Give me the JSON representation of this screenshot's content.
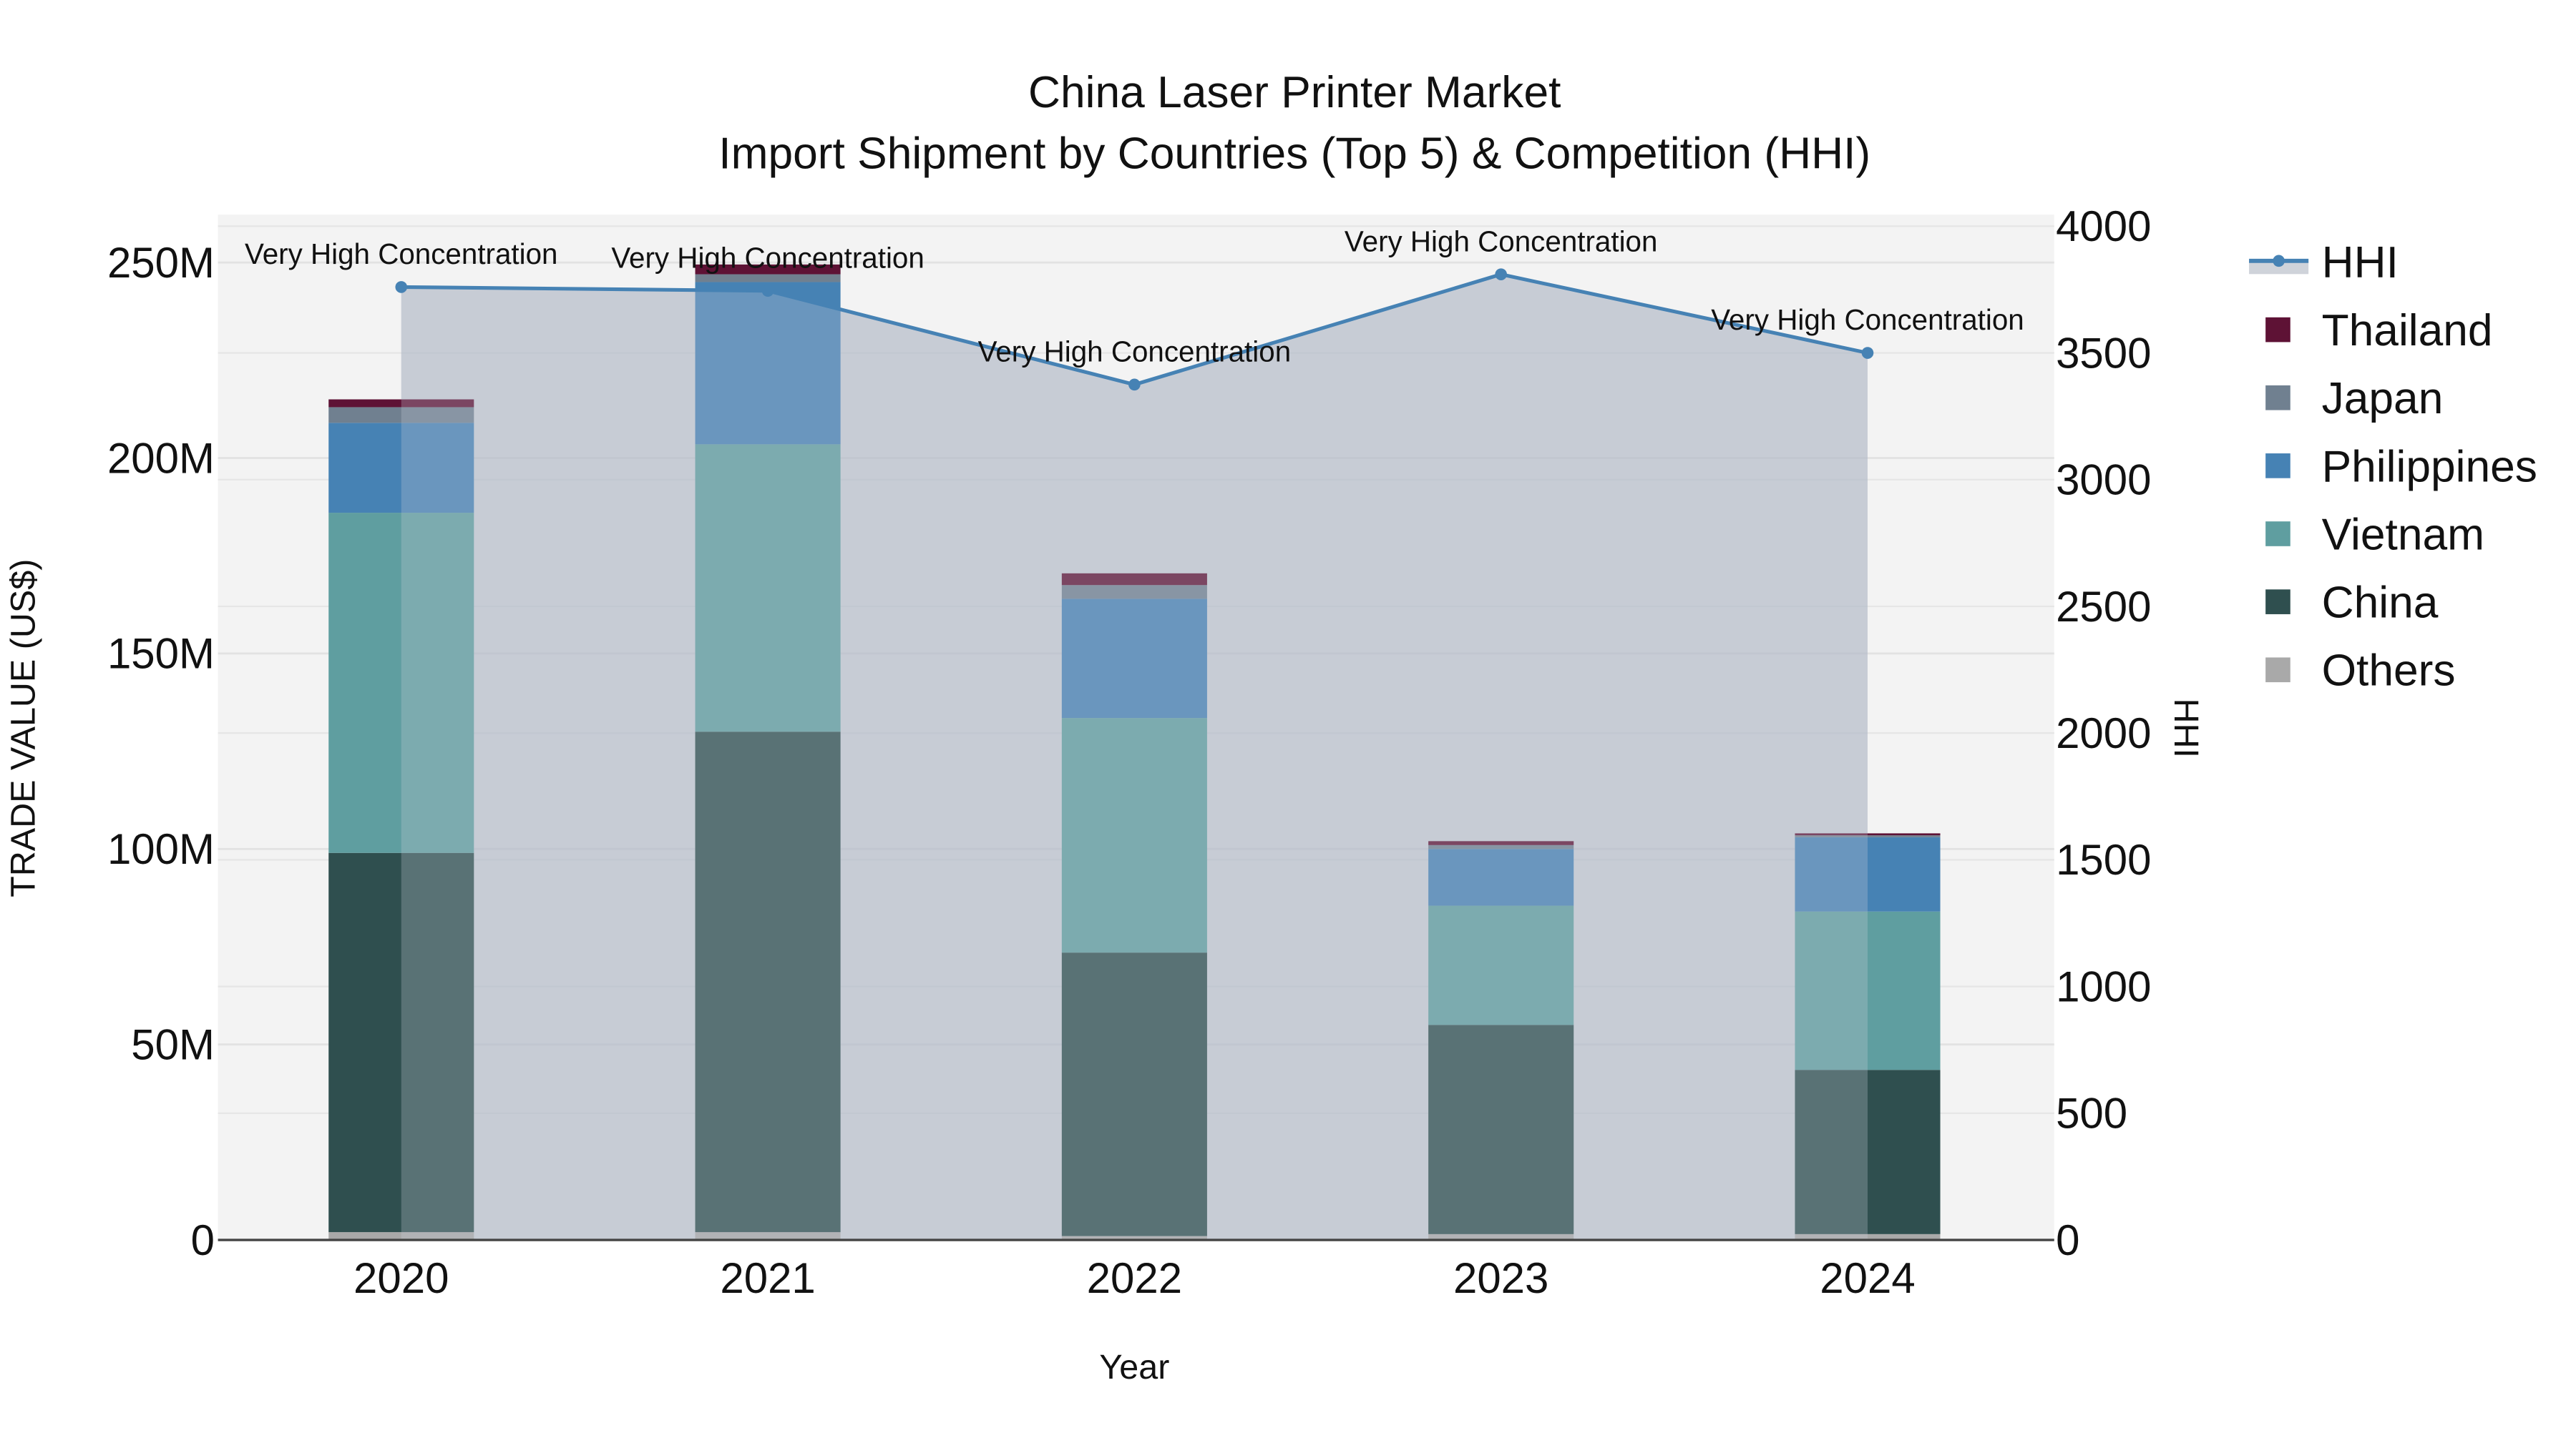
{
  "chart_data": {
    "type": "bar",
    "title": "China Laser Printer Market",
    "subtitle": "Import Shipment by Countries (Top 5) & Competition (HHI)",
    "xlabel": "Year",
    "ylabel": "TRADE VALUE (US$)",
    "y2label": "HHI",
    "categories": [
      "2020",
      "2021",
      "2022",
      "2023",
      "2024"
    ],
    "ylim": [
      0,
      260000000
    ],
    "y2lim": [
      0,
      4050
    ],
    "y_ticks": [
      "0",
      "50M",
      "100M",
      "150M",
      "200M",
      "250M"
    ],
    "y2_ticks": [
      "0",
      "500",
      "1000",
      "1500",
      "2000",
      "2500",
      "3000",
      "3500",
      "4000"
    ],
    "stacked": true,
    "series": [
      {
        "name": "Others",
        "color": "#a9a9a9",
        "values": [
          2000000,
          2000000,
          1000000,
          1500000,
          1500000
        ]
      },
      {
        "name": "China",
        "color": "#2f4f4f",
        "values": [
          97000000,
          128000000,
          72500000,
          53500000,
          42000000
        ]
      },
      {
        "name": "Vietnam",
        "color": "#5f9ea0",
        "values": [
          87000000,
          73500000,
          60000000,
          30500000,
          40500000
        ]
      },
      {
        "name": "Philippines",
        "color": "#4682b4",
        "values": [
          23000000,
          41500000,
          30500000,
          14500000,
          19000000
        ]
      },
      {
        "name": "Japan",
        "color": "#708090",
        "values": [
          4000000,
          2000000,
          3500000,
          1000000,
          500000
        ]
      },
      {
        "name": "Thailand",
        "color": "#5e1235",
        "values": [
          2000000,
          2500000,
          3000000,
          1000000,
          500000
        ]
      }
    ],
    "line_series": {
      "name": "HHI",
      "color": "#4682b4",
      "axis": "y2",
      "fill": "tozeroy",
      "values": [
        3760,
        3745,
        3375,
        3810,
        3500
      ],
      "annotations": [
        "Very High Concentration",
        "Very High Concentration",
        "Very High Concentration",
        "Very High Concentration",
        "Very High Concentration"
      ]
    },
    "grid": true,
    "legend_position": "right",
    "legend": [
      "HHI",
      "Thailand",
      "Japan",
      "Philippines",
      "Vietnam",
      "China",
      "Others"
    ]
  }
}
